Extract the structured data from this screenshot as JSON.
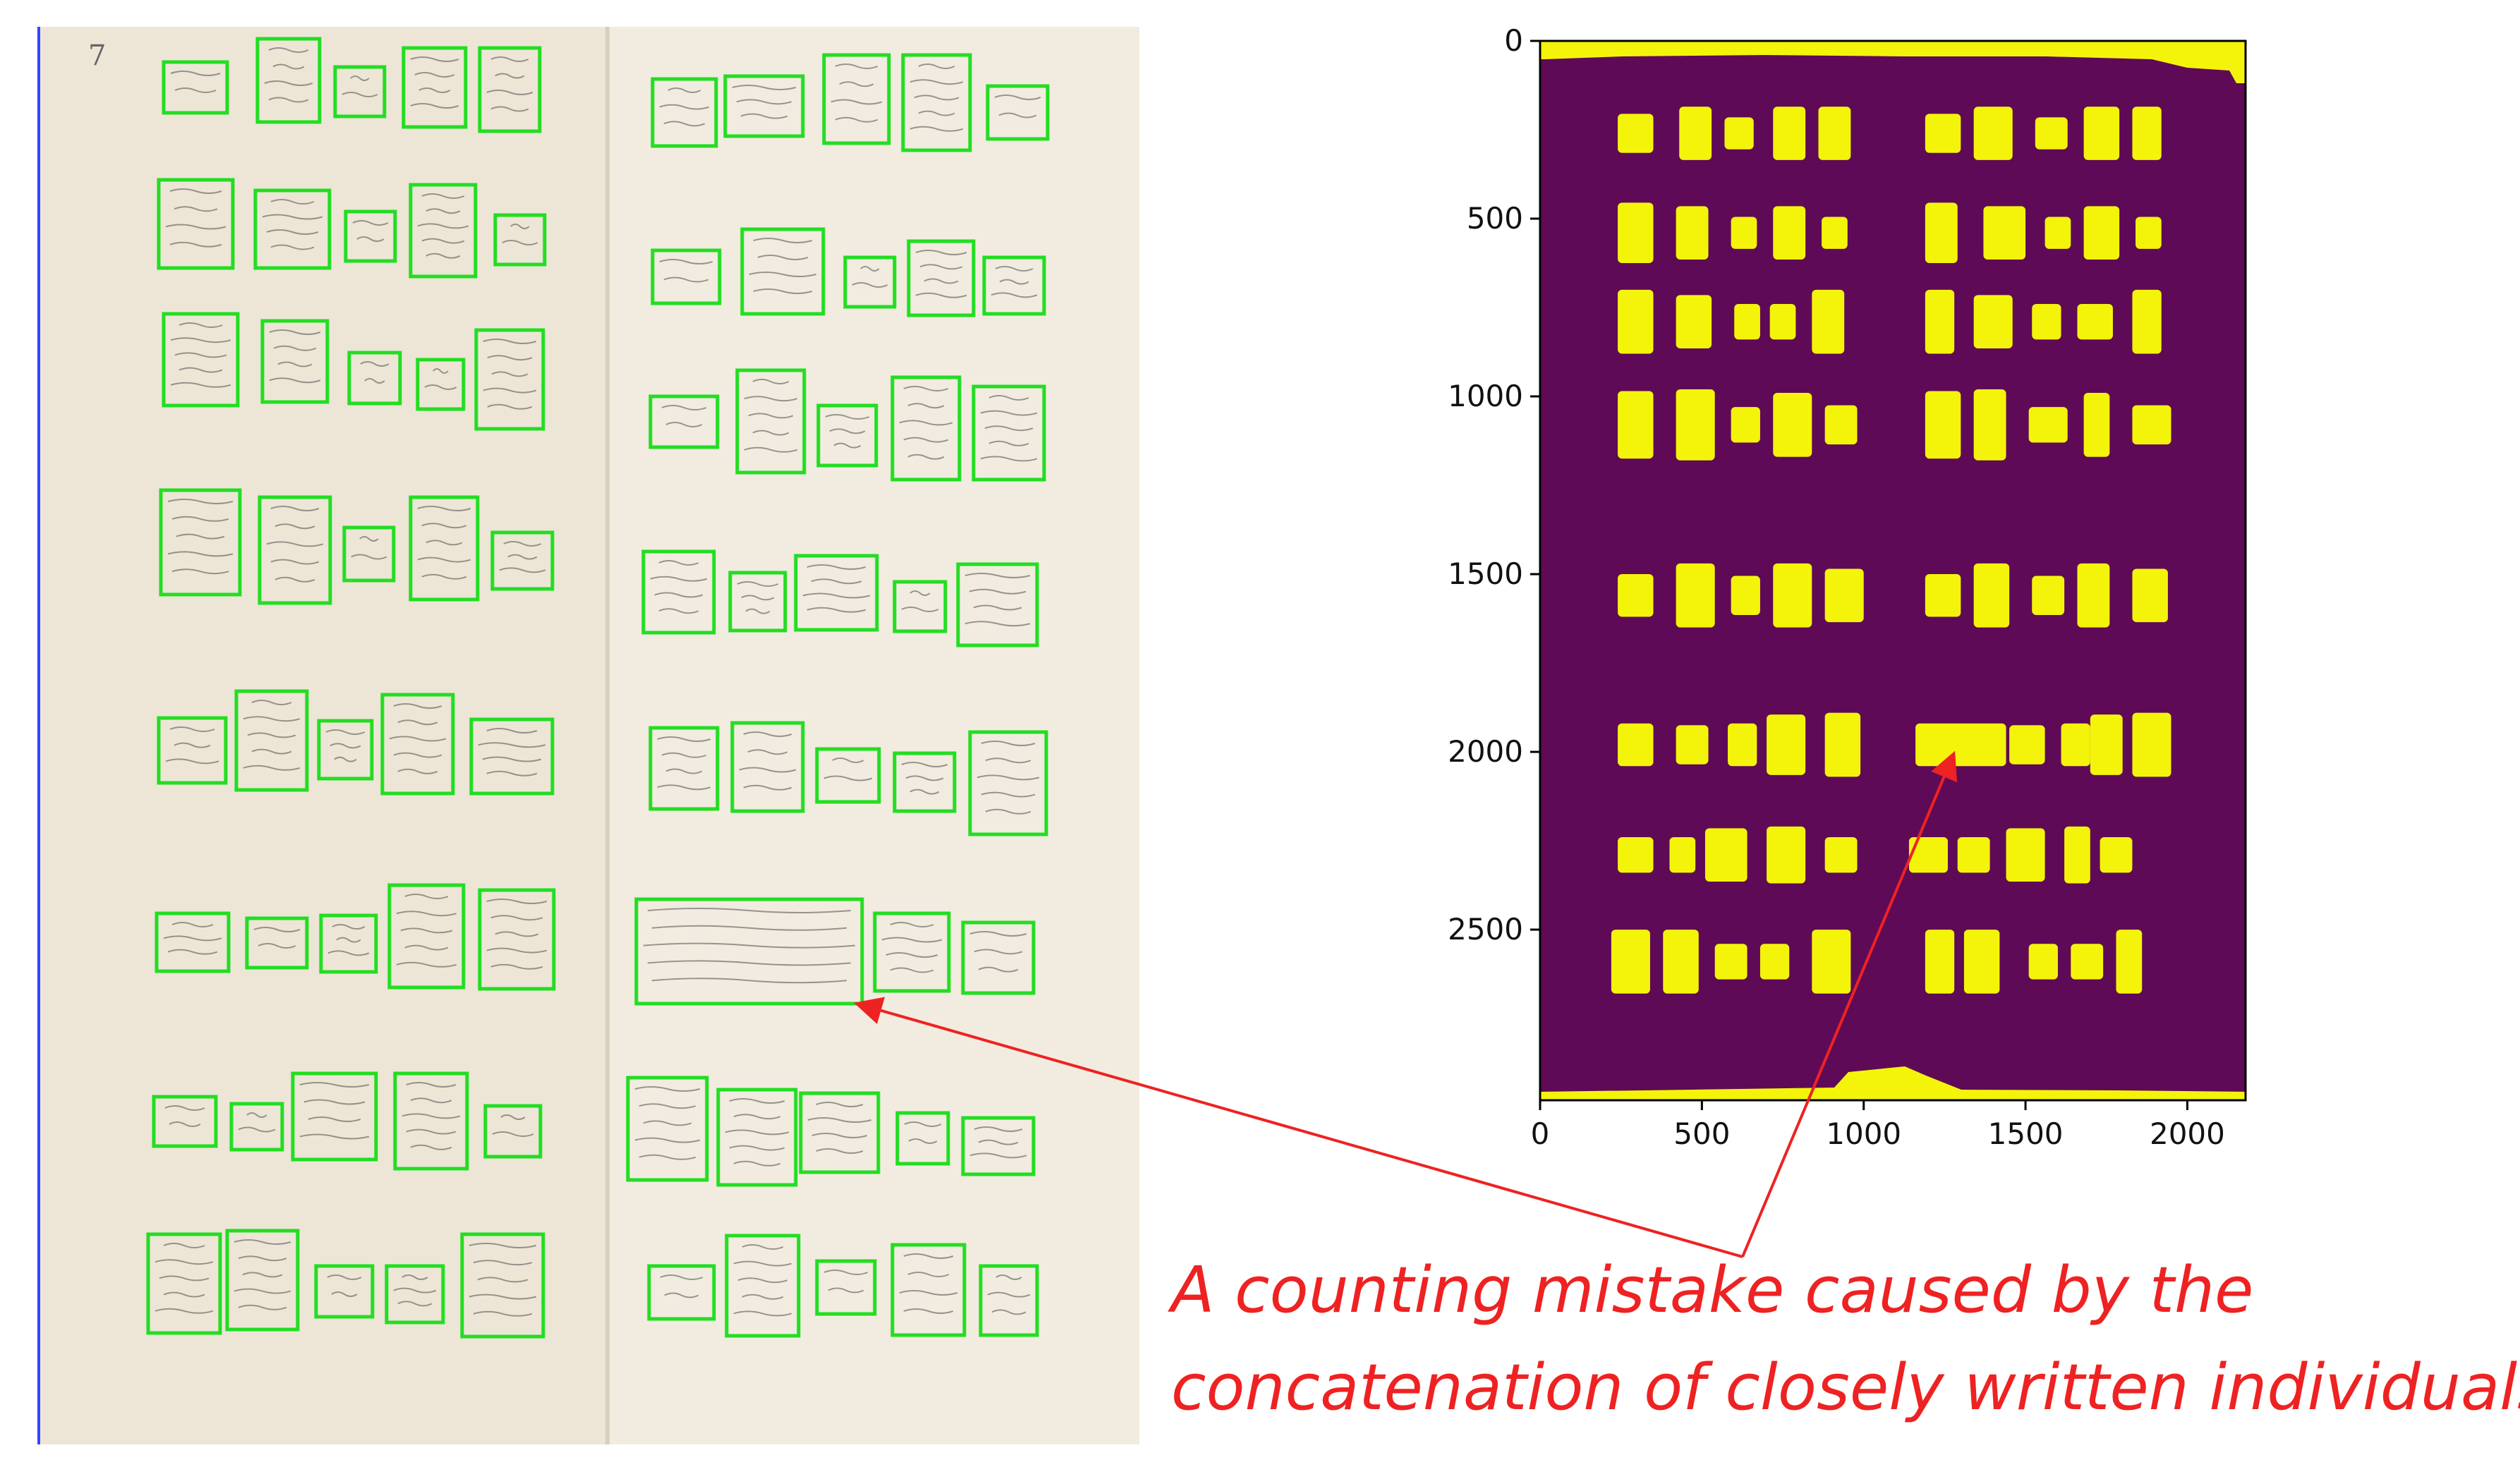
{
  "figure": {
    "page_number": "7",
    "mask_plot": {
      "x_ticks": [
        "0",
        "500",
        "1000",
        "1500",
        "2000"
      ],
      "y_ticks": [
        "0",
        "500",
        "1000",
        "1500",
        "2000",
        "2500"
      ],
      "x_range": [
        0,
        2180
      ],
      "y_range": [
        0,
        2980
      ],
      "background_color": "#5f0a57",
      "blob_color": "#f4f40b"
    },
    "annotation": {
      "line1": "A counting mistake caused by the",
      "line2": "concatenation of closely written individuals",
      "color": "#ee2222"
    },
    "box_color": "#22dd22"
  }
}
